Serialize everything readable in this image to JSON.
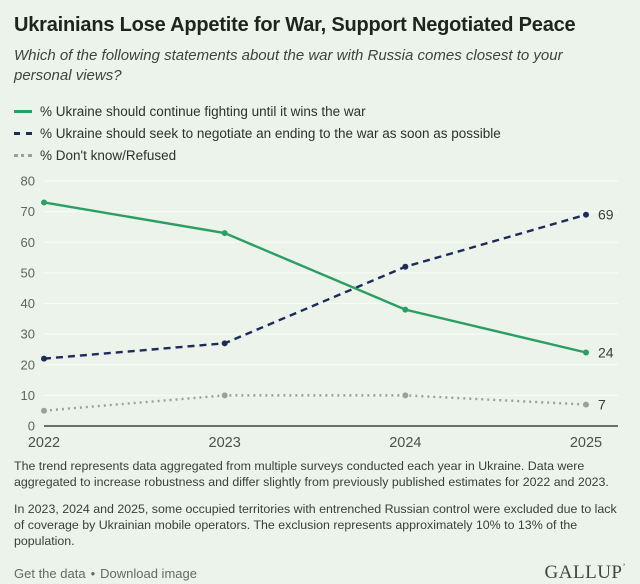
{
  "header": {
    "title": "Ukrainians Lose Appetite for War, Support Negotiated Peace",
    "subtitle": "Which of the following statements about the war with Russia comes closest to your personal views?"
  },
  "chart_data": {
    "type": "line",
    "x": [
      "2022",
      "2023",
      "2024",
      "2025"
    ],
    "series": [
      {
        "name": "% Ukraine should continue fighting until it wins the war",
        "values": [
          73,
          63,
          38,
          24
        ],
        "color": "#2a9e63",
        "dash": "solid",
        "end_label": "24"
      },
      {
        "name": "% Ukraine should seek to negotiate an ending to the war as soon as possible",
        "values": [
          22,
          27,
          52,
          69
        ],
        "color": "#1d2b5a",
        "dash": "dashed",
        "end_label": "69"
      },
      {
        "name": "% Don't know/Refused",
        "values": [
          5,
          10,
          10,
          7
        ],
        "color": "#9aa19a",
        "dash": "dotted",
        "end_label": "7"
      }
    ],
    "ylim": [
      0,
      80
    ],
    "yticks": [
      0,
      10,
      20,
      30,
      40,
      50,
      60,
      70,
      80
    ],
    "grid": true,
    "legend_position": "top-left",
    "background": "#ebf3ea",
    "gridline_color": "#f8fbf7",
    "axis_color": "#3f443f"
  },
  "footnotes": [
    "The trend represents data aggregated from multiple surveys conducted each year in Ukraine. Data were aggregated to increase robustness and differ slightly from previously published estimates for 2022 and 2023.",
    "In 2023, 2024 and 2025, some occupied territories with entrenched Russian control were excluded due to lack of coverage by Ukrainian mobile operators. The exclusion represents approximately 10% to 13% of the population."
  ],
  "footer": {
    "link_get_data": "Get the data",
    "link_separator": "•",
    "link_download": "Download image",
    "brand": "GALLUP",
    "brand_mark": "’"
  }
}
